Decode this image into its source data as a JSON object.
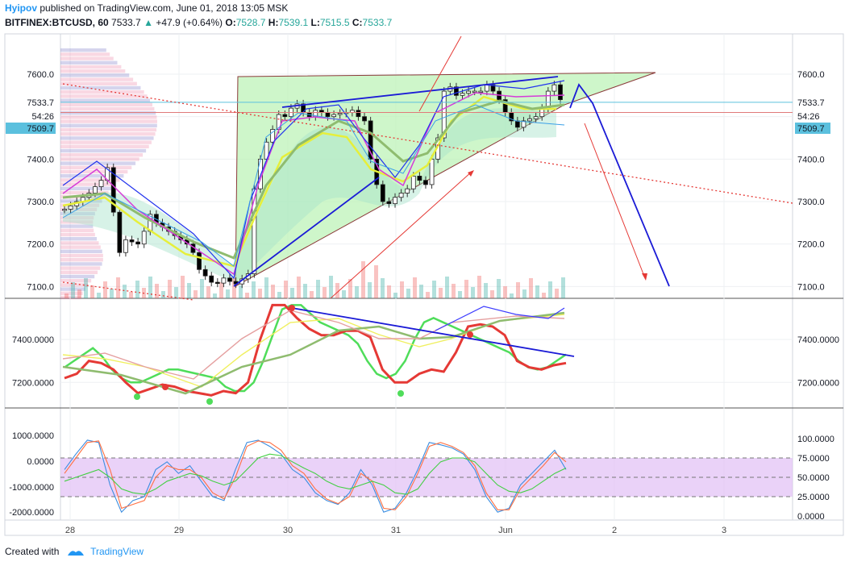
{
  "header": {
    "author": "Hyipov",
    "published_text": "published on TradingView.com, June 01, 2018 13:05 MSK",
    "symbol": "BITFINEX:BTCUSD, 60",
    "last": "7533.7",
    "change": "+47.9 (+0.64%)",
    "o_label": "O:",
    "o_value": "7528.7",
    "h_label": "H:",
    "h_value": "7539.1",
    "l_label": "L:",
    "l_value": "7515.5",
    "c_label": "C:",
    "c_value": "7533.7"
  },
  "footer": {
    "created_with": "Created with",
    "brand": "TradingView"
  },
  "colors": {
    "up": "#26a69a",
    "down": "#000000",
    "wedge_fill": "#b9f2b4",
    "wedge_edge": "#8b3a3a",
    "trend_blue": "#1b1bd6",
    "forecast_red": "#e53935",
    "rsi_band": "#e1bff5",
    "price_badge": "#5bc0de"
  },
  "chart_data": [
    {
      "type": "line",
      "title": "BITFINEX:BTCUSD, 60",
      "x_ticks": [
        "28",
        "29",
        "30",
        "31",
        "Jun",
        "2",
        "3"
      ],
      "y_ticks": [
        "7100.0",
        "7200.0",
        "7300.0",
        "7400.0",
        "7500.0",
        "7600.0"
      ],
      "ylim": [
        7080,
        7650
      ],
      "price_labels": {
        "current": "7533.7",
        "countdown": "54:26",
        "line_value": "7509.7"
      },
      "series": [
        {
          "values": [
            7282,
            7290,
            7300,
            7310,
            7320,
            7335,
            7350,
            7380,
            7275,
            7180,
            7210,
            7205,
            7200,
            7230,
            7270,
            7250,
            7240,
            7230,
            7220,
            7210,
            7200,
            7180,
            7140,
            7125,
            7110,
            7108,
            7120,
            7112,
            7106,
            7118,
            7130,
            7330,
            7400,
            7440,
            7470,
            7505,
            7500,
            7520,
            7530,
            7510,
            7500,
            7515,
            7510,
            7500,
            7505,
            7508,
            7510,
            7515,
            7500,
            7490,
            7400,
            7340,
            7300,
            7295,
            7310,
            7320,
            7330,
            7360,
            7350,
            7340,
            7400,
            7450,
            7560,
            7570,
            7550,
            7555,
            7560,
            7560,
            7560,
            7575,
            7560,
            7540,
            7510,
            7490,
            7475,
            7490,
            7495,
            7500,
            7520,
            7560,
            7575,
            7540
          ]
        }
      ]
    },
    {
      "type": "line",
      "title": "",
      "y_ticks": [
        "7200.0000",
        "7400.0000"
      ],
      "ylim": [
        7130,
        7570
      ],
      "series": [
        {
          "values": [
            7270,
            7300,
            7330,
            7360,
            7320,
            7260,
            7220,
            7200,
            7200,
            7220,
            7240,
            7260,
            7260,
            7250,
            7240,
            7230,
            7220,
            7180,
            7160,
            7160,
            7200,
            7300,
            7420,
            7540,
            7560,
            7560,
            7520,
            7480,
            7460,
            7440,
            7420,
            7380,
            7300,
            7240,
            7220,
            7240,
            7300,
            7400,
            7480,
            7500,
            7480,
            7460,
            7440,
            7420,
            7400,
            7380,
            7360,
            7340,
            7300,
            7270,
            7260,
            7270,
            7300,
            7330
          ]
        },
        {
          "values": [
            7220,
            7240,
            7300,
            7290,
            7260,
            7200,
            7150,
            7170,
            7190,
            7180,
            7160,
            7150,
            7140,
            7160,
            7150,
            7200,
            7400,
            7560,
            7560,
            7500,
            7450,
            7420,
            7420,
            7440,
            7440,
            7410,
            7260,
            7200,
            7200,
            7240,
            7260,
            7250,
            7340,
            7460,
            7470,
            7460,
            7420,
            7300,
            7270,
            7260,
            7280,
            7290
          ]
        }
      ]
    },
    {
      "type": "line",
      "title": "",
      "y_ticks": [
        "-2000.0000",
        "-1000.0000",
        "0.0000",
        "1000.0000"
      ],
      "right_ticks": [
        "0.0000",
        "25.0000",
        "50.0000",
        "75.0000",
        "100.0000"
      ],
      "ylim": [
        0,
        100
      ],
      "band": [
        25,
        75
      ],
      "series": [
        {
          "values": [
            60,
            80,
            98,
            95,
            40,
            5,
            20,
            25,
            60,
            70,
            55,
            65,
            45,
            25,
            20,
            60,
            95,
            98,
            90,
            80,
            60,
            50,
            30,
            20,
            15,
            30,
            60,
            40,
            5,
            10,
            30,
            60,
            95,
            92,
            88,
            80,
            60,
            25,
            5,
            10,
            40,
            55,
            70,
            85,
            60
          ]
        },
        {
          "values": [
            55,
            75,
            95,
            97,
            60,
            10,
            15,
            20,
            50,
            65,
            60,
            60,
            50,
            30,
            22,
            50,
            90,
            97,
            95,
            85,
            65,
            55,
            35,
            22,
            16,
            25,
            55,
            45,
            10,
            8,
            25,
            55,
            90,
            95,
            90,
            82,
            65,
            30,
            8,
            8,
            35,
            50,
            65,
            82,
            70
          ]
        },
        {
          "values": [
            45,
            50,
            55,
            60,
            50,
            35,
            30,
            28,
            35,
            45,
            50,
            55,
            52,
            45,
            40,
            45,
            60,
            75,
            80,
            78,
            70,
            62,
            55,
            45,
            38,
            35,
            40,
            45,
            40,
            30,
            28,
            35,
            55,
            70,
            75,
            75,
            70,
            55,
            40,
            32,
            30,
            35,
            45,
            55,
            62
          ]
        }
      ]
    }
  ]
}
